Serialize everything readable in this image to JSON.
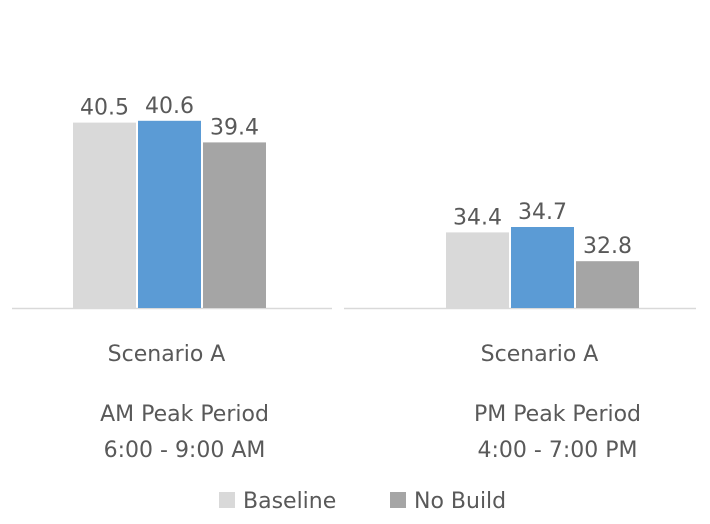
{
  "chart_data": {
    "type": "bar",
    "groups": [
      {
        "category": "Scenario A",
        "period": "AM Peak Period",
        "time": "6:00 - 9:00 AM",
        "values": [
          40.5,
          40.6,
          39.4
        ]
      },
      {
        "category": "Scenario A",
        "period": "PM Peak Period",
        "time": "4:00 - 7:00 PM",
        "values": [
          34.4,
          34.7,
          32.8
        ]
      }
    ],
    "series": [
      {
        "name": "Baseline",
        "color": "#d9d9d9",
        "in_legend": true
      },
      {
        "name": "",
        "color": "#5b9bd5",
        "in_legend": false
      },
      {
        "name": "No Build",
        "color": "#a5a5a5",
        "in_legend": true
      }
    ],
    "ylim": [
      30.2,
      42.5
    ],
    "grid": false,
    "legend_position": "bottom",
    "data_labels": true
  }
}
